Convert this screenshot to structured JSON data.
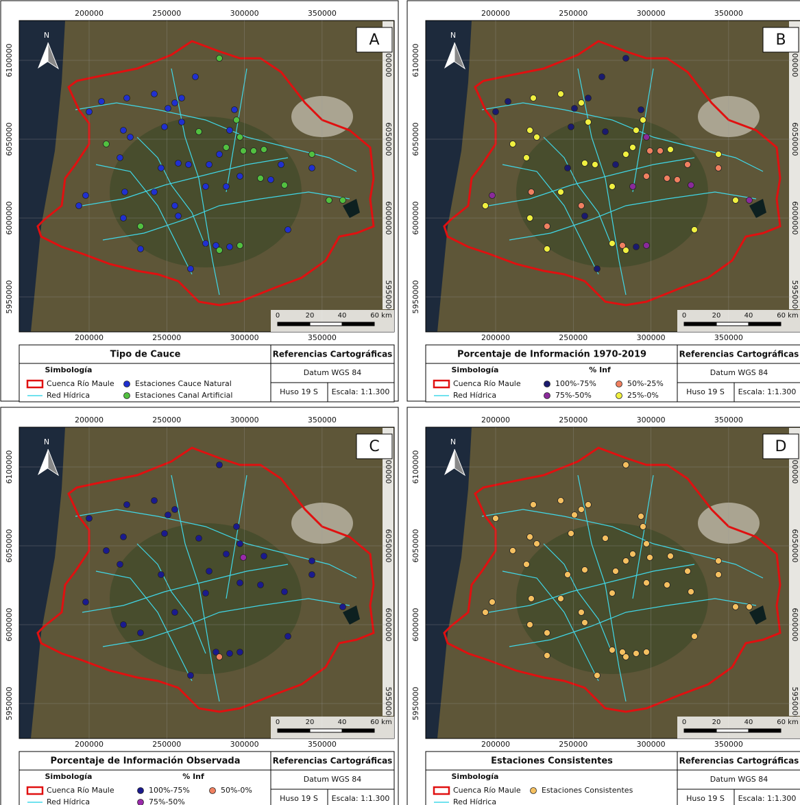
{
  "axes": {
    "x_ticks": [
      200000,
      250000,
      300000,
      350000
    ],
    "y_ticks": [
      6100000,
      6050000,
      6000000,
      5950000
    ]
  },
  "north": "N",
  "scale_bar": [
    "0",
    "20",
    "40",
    "60 km"
  ],
  "common": {
    "symbology": "Simbología",
    "basin": "Cuenca Río Maule",
    "rivers": "Red Hídrica"
  },
  "references": {
    "title": "Referencias Cartográficas",
    "datum": "Datum WGS 84",
    "zone": "Huso 19 S",
    "scale": "Escala: 1:1.300"
  },
  "panels": [
    {
      "letter": "A",
      "legend_title": "Tipo de Cauce",
      "items": [
        {
          "label": "Estaciones Cauce Natural",
          "color": "#2030d0"
        },
        {
          "label": "Estaciones Canal Artificial",
          "color": "#52c040"
        }
      ]
    },
    {
      "letter": "B",
      "legend_title": "Porcentaje de Información 1970-2019",
      "items_header": "% Inf",
      "items": [
        {
          "label": "100%-75%",
          "color": "#1a1a6e"
        },
        {
          "label": "75%-50%",
          "color": "#8a2a9a"
        },
        {
          "label": "50%-25%",
          "color": "#f08060"
        },
        {
          "label": "25%-0%",
          "color": "#f0f040"
        }
      ]
    },
    {
      "letter": "C",
      "legend_title": "Porcentaje de Información Observada",
      "items_header": "% Inf",
      "items": [
        {
          "label": "100%-75%",
          "color": "#1a1a8e"
        },
        {
          "label": "75%-50%",
          "color": "#9a2aaa"
        },
        {
          "label": "50%-0%",
          "color": "#f08060"
        }
      ]
    },
    {
      "letter": "D",
      "legend_title": "Estaciones Consistentes",
      "items": [
        {
          "label": "Estaciones Consistentes",
          "color": "#f5c060"
        }
      ]
    }
  ]
}
